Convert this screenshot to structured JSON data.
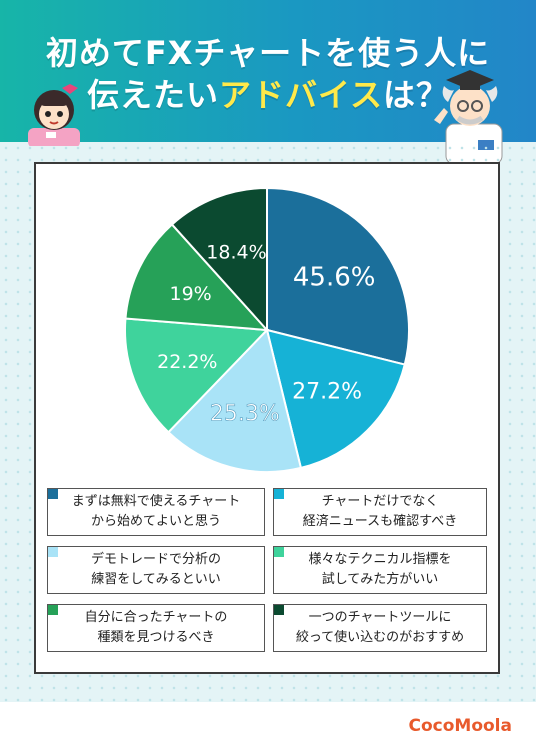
{
  "header": {
    "title_line1": "初めてFXチャートを使う人に",
    "title_line2_pre": "伝えたい",
    "title_line2_highlight": "アドバイス",
    "title_line2_post": "は？"
  },
  "colors": {
    "header_start": "#17b5a8",
    "header_end": "#2286c8",
    "highlight": "#ffe94a",
    "logo": "#e85a2c"
  },
  "chart_data": {
    "type": "pie",
    "slices": [
      {
        "label": "まずは無料で使えるチャートから始めてよいと思う",
        "value": 45.6,
        "display": "45.6%",
        "color": "#1b6f9b"
      },
      {
        "label": "チャートだけでなく経済ニュースも確認すべき",
        "value": 27.2,
        "display": "27.2%",
        "color": "#16b2d6"
      },
      {
        "label": "デモトレードで分析の練習をしてみるといい",
        "value": 25.3,
        "display": "25.3%",
        "color": "#a9e3f7"
      },
      {
        "label": "様々なテクニカル指標を試してみた方がいい",
        "value": 22.2,
        "display": "22.2%",
        "color": "#3fd39c"
      },
      {
        "label": "自分に合ったチャートの種類を見つけるべき",
        "value": 19,
        "display": "19%",
        "color": "#26a158"
      },
      {
        "label": "一つのチャートツールに絞って使い込むのがおすすめ",
        "value": 18.4,
        "display": "18.4%",
        "color": "#0b4a30"
      }
    ],
    "legend_placement": "bottom",
    "grid": false
  },
  "legend": {
    "items": [
      {
        "line1": "まずは無料で使えるチャート",
        "line2": "から始めてよいと思う",
        "color": "#1b6f9b"
      },
      {
        "line1": "チャートだけでなく",
        "line2": "経済ニュースも確認すべき",
        "color": "#16b2d6"
      },
      {
        "line1": "デモトレードで分析の",
        "line2": "練習をしてみるといい",
        "color": "#a9e3f7"
      },
      {
        "line1": "様々なテクニカル指標を",
        "line2": "試してみた方がいい",
        "color": "#3fd39c"
      },
      {
        "line1": "自分に合ったチャートの",
        "line2": "種類を見つけるべき",
        "color": "#26a158"
      },
      {
        "line1": "一つのチャートツールに",
        "line2": "絞って使い込むのがおすすめ",
        "color": "#0b4a30"
      }
    ]
  },
  "footer": {
    "logo": "CocoMoola"
  }
}
